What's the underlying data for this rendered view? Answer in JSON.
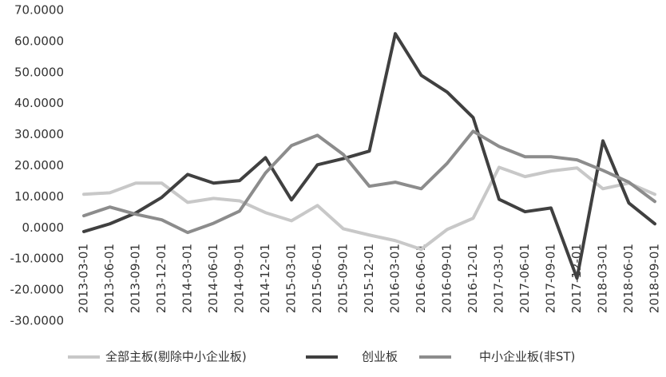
{
  "chart_data": {
    "type": "line",
    "categories": [
      "2013-03-01",
      "2013-06-01",
      "2013-09-01",
      "2013-12-01",
      "2014-03-01",
      "2014-06-01",
      "2014-09-01",
      "2014-12-01",
      "2015-03-01",
      "2015-06-01",
      "2015-09-01",
      "2015-12-01",
      "2016-03-01",
      "2016-06-01",
      "2016-09-01",
      "2016-12-01",
      "2017-03-01",
      "2017-06-01",
      "2017-09-01",
      "2017-12-01",
      "2018-03-01",
      "2018-06-01",
      "2018-09-01"
    ],
    "series": [
      {
        "name": "全部主板(剔除中小企业板)",
        "color": "#c8c8c8",
        "values": [
          10.8,
          11.3,
          14.4,
          14.4,
          8.2,
          9.5,
          8.7,
          4.9,
          2.3,
          7.2,
          -0.3,
          -2.3,
          -4.1,
          -6.9,
          -0.5,
          3.1,
          19.5,
          16.5,
          18.3,
          19.3,
          12.6,
          14.4,
          10.8
        ]
      },
      {
        "name": "创业板",
        "color": "#404040",
        "values": [
          -1.2,
          1.3,
          4.8,
          9.8,
          17.2,
          14.4,
          15.2,
          22.6,
          9.0,
          20.3,
          22.3,
          24.7,
          62.5,
          49.1,
          43.7,
          35.5,
          9.2,
          5.2,
          6.4,
          -16.2,
          28.0,
          8.0,
          1.3
        ]
      },
      {
        "name": "中小企业板(非ST)",
        "color": "#8c8c8c",
        "values": [
          3.9,
          6.7,
          4.4,
          2.6,
          -1.5,
          1.5,
          5.4,
          17.7,
          26.5,
          29.8,
          23.6,
          13.4,
          14.7,
          12.6,
          20.8,
          31.1,
          26.2,
          22.9,
          22.9,
          21.9,
          18.5,
          14.7,
          8.5
        ]
      }
    ],
    "ylim": [
      -30,
      70
    ],
    "yticks": [
      {
        "value": -30,
        "label": "-30.0000"
      },
      {
        "value": -20,
        "label": "-20.0000"
      },
      {
        "value": -10,
        "label": "-10.0000"
      },
      {
        "value": 0,
        "label": "0.0000"
      },
      {
        "value": 10,
        "label": "10.0000"
      },
      {
        "value": 20,
        "label": "20.0000"
      },
      {
        "value": 30,
        "label": "30.0000"
      },
      {
        "value": 40,
        "label": "40.0000"
      },
      {
        "value": 50,
        "label": "50.0000"
      },
      {
        "value": 60,
        "label": "60.0000"
      },
      {
        "value": 70,
        "label": "70.0000"
      }
    ],
    "grid": false
  }
}
